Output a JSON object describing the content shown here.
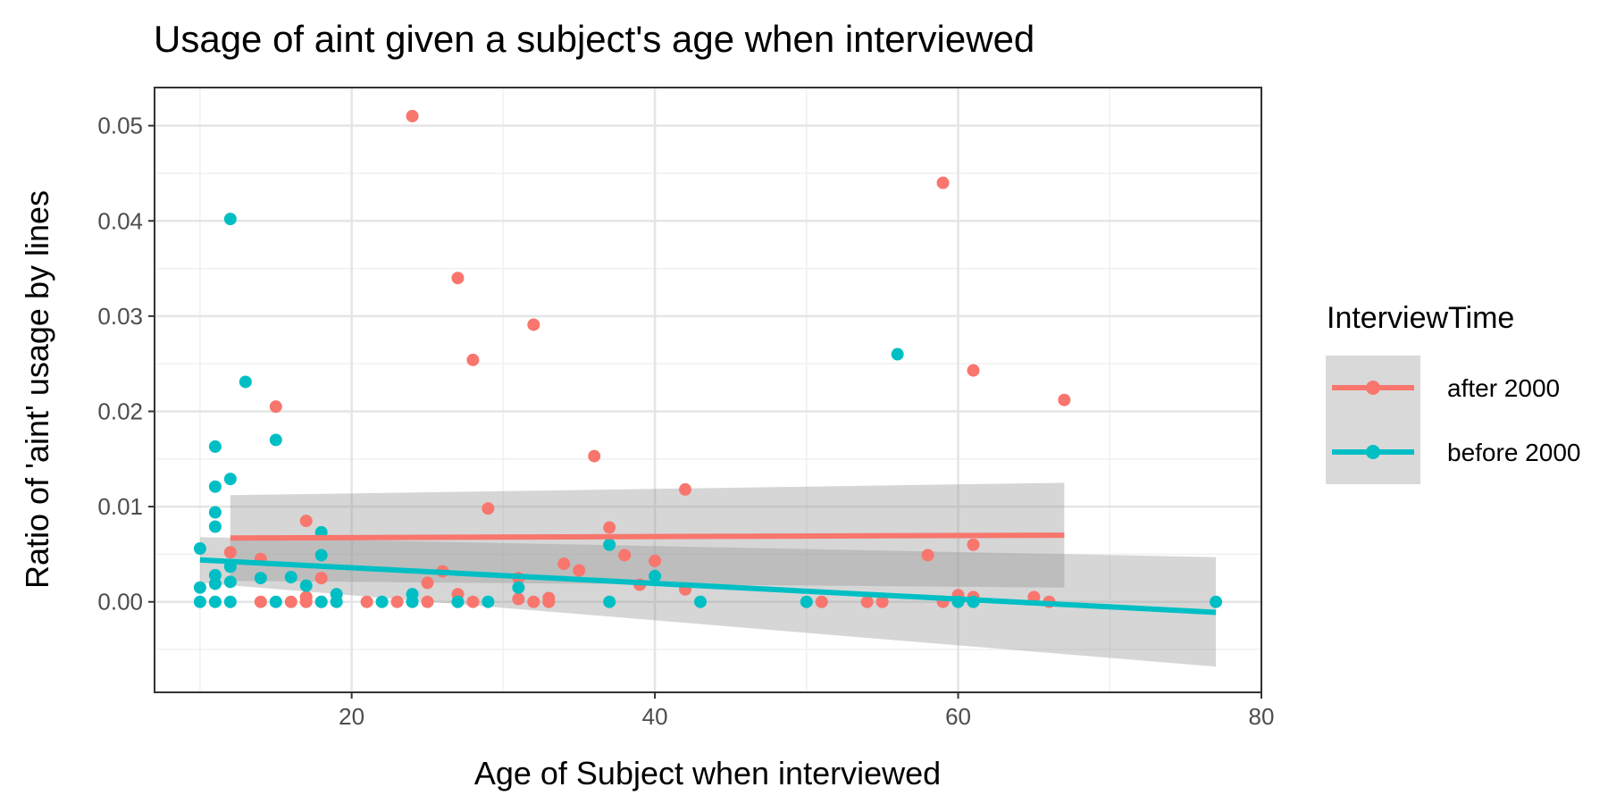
{
  "chart_data": {
    "type": "scatter",
    "title": "Usage of aint given a subject's age when interviewed",
    "xlabel": "Age of Subject when interviewed",
    "ylabel": "Ratio of 'aint' usage by lines",
    "xlim": [
      7,
      80
    ],
    "ylim": [
      -0.0095,
      0.054
    ],
    "x_ticks": [
      20,
      40,
      60,
      80
    ],
    "y_ticks": [
      0.0,
      0.01,
      0.02,
      0.03,
      0.04,
      0.05
    ],
    "x_tick_labels": [
      "20",
      "40",
      "60",
      "80"
    ],
    "y_tick_labels": [
      "0.00",
      "0.01",
      "0.02",
      "0.03",
      "0.04",
      "0.05"
    ],
    "grid": true,
    "legend": {
      "title": "InterviewTime",
      "position": "right"
    },
    "series": [
      {
        "name": "after 2000",
        "color": "#F8766D",
        "points": [
          [
            12,
            0.0052
          ],
          [
            14,
            0.0045
          ],
          [
            14,
            0.0
          ],
          [
            15,
            0.0205
          ],
          [
            16,
            0.0
          ],
          [
            17,
            0.0085
          ],
          [
            17,
            0.0005
          ],
          [
            17,
            0.0
          ],
          [
            18,
            0.0025
          ],
          [
            18,
            0.0
          ],
          [
            21,
            0.0
          ],
          [
            23,
            0.0
          ],
          [
            24,
            0.051
          ],
          [
            25,
            0.002
          ],
          [
            25,
            0.0
          ],
          [
            26,
            0.0032
          ],
          [
            27,
            0.034
          ],
          [
            27,
            0.0008
          ],
          [
            28,
            0.0254
          ],
          [
            28,
            0.0
          ],
          [
            29,
            0.0098
          ],
          [
            31,
            0.0025
          ],
          [
            31,
            0.0003
          ],
          [
            32,
            0.0291
          ],
          [
            32,
            0.0
          ],
          [
            33,
            0.0004
          ],
          [
            33,
            0.0
          ],
          [
            34,
            0.004
          ],
          [
            35,
            0.0033
          ],
          [
            36,
            0.0153
          ],
          [
            37,
            0.0078
          ],
          [
            38,
            0.0049
          ],
          [
            39,
            0.0018
          ],
          [
            40,
            0.0043
          ],
          [
            42,
            0.0118
          ],
          [
            42,
            0.0013
          ],
          [
            51,
            0.0
          ],
          [
            54,
            0.0
          ],
          [
            55,
            0.0
          ],
          [
            58,
            0.0049
          ],
          [
            59,
            0.044
          ],
          [
            59,
            0.0
          ],
          [
            60,
            0.0007
          ],
          [
            61,
            0.0243
          ],
          [
            61,
            0.006
          ],
          [
            61,
            0.0005
          ],
          [
            65,
            0.0005
          ],
          [
            66,
            0.0
          ],
          [
            67,
            0.0212
          ]
        ],
        "trend": {
          "x": [
            12,
            67
          ],
          "y": [
            0.0067,
            0.007
          ],
          "ci_low": [
            0.0022,
            0.0015
          ],
          "ci_high": [
            0.0112,
            0.0125
          ]
        }
      },
      {
        "name": "before 2000",
        "color": "#00BFC4",
        "points": [
          [
            10,
            0.0056
          ],
          [
            10,
            0.0015
          ],
          [
            10,
            0.0
          ],
          [
            11,
            0.0163
          ],
          [
            11,
            0.0121
          ],
          [
            11,
            0.0094
          ],
          [
            11,
            0.0079
          ],
          [
            11,
            0.0028
          ],
          [
            11,
            0.0019
          ],
          [
            11,
            0.0
          ],
          [
            12,
            0.0402
          ],
          [
            12,
            0.0129
          ],
          [
            12,
            0.0037
          ],
          [
            12,
            0.0021
          ],
          [
            12,
            0.0
          ],
          [
            13,
            0.0231
          ],
          [
            14,
            0.0025
          ],
          [
            15,
            0.017
          ],
          [
            15,
            0.0
          ],
          [
            16,
            0.0026
          ],
          [
            17,
            0.0017
          ],
          [
            18,
            0.0073
          ],
          [
            18,
            0.0049
          ],
          [
            18,
            0.0
          ],
          [
            19,
            0.0008
          ],
          [
            19,
            0.0
          ],
          [
            22,
            0.0
          ],
          [
            24,
            0.0008
          ],
          [
            24,
            0.0
          ],
          [
            27,
            0.0
          ],
          [
            29,
            0.0
          ],
          [
            31,
            0.0015
          ],
          [
            37,
            0.006
          ],
          [
            37,
            0.0
          ],
          [
            40,
            0.0027
          ],
          [
            43,
            0.0
          ],
          [
            50,
            0.0
          ],
          [
            56,
            0.026
          ],
          [
            60,
            0.0
          ],
          [
            61,
            0.0
          ],
          [
            77,
            0.0
          ]
        ],
        "trend": {
          "x": [
            10,
            77
          ],
          "y": [
            0.0044,
            -0.0011
          ],
          "ci_low": [
            0.002,
            -0.0068
          ],
          "ci_high": [
            0.0068,
            0.0047
          ]
        }
      }
    ]
  }
}
